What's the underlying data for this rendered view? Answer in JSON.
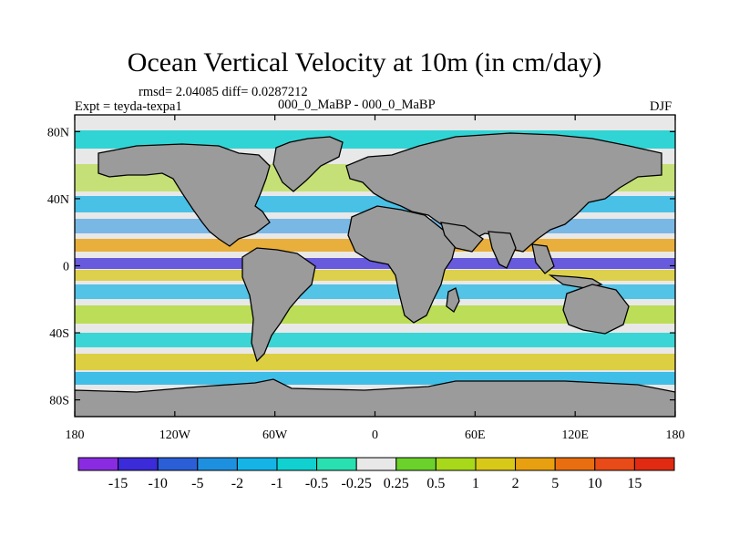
{
  "chart_data": {
    "type": "heatmap",
    "title": "Ocean Vertical Velocity at 10m (in cm/day)",
    "stats": "rmsd= 2.04085 diff= 0.0287212",
    "experiment": "Expt = teyda-texpa1",
    "comparison": "000_0_MaBP - 000_0_MaBP",
    "season": "DJF",
    "x_ticks": [
      "180",
      "120W",
      "60W",
      "0",
      "60E",
      "120E",
      "180"
    ],
    "x_tick_lon": [
      -180,
      -120,
      -60,
      0,
      60,
      120,
      180
    ],
    "y_ticks": [
      "80N",
      "40N",
      "0",
      "40S",
      "80S"
    ],
    "y_tick_lat": [
      80,
      40,
      0,
      -40,
      -80
    ],
    "xlim": [
      -180,
      180
    ],
    "ylim": [
      -90,
      90
    ],
    "colorbar_levels": [
      "-15",
      "-10",
      "-5",
      "-2",
      "-1",
      "-0.5",
      "-0.25",
      "0.25",
      "0.5",
      "1",
      "2",
      "5",
      "10",
      "15"
    ],
    "colorbar_colors": [
      "#8a2be2",
      "#3c2bd8",
      "#2a5fd8",
      "#1e90e0",
      "#14b4e6",
      "#10d0d0",
      "#28e0b0",
      "#e8e8e8",
      "#6ad22a",
      "#a8d81a",
      "#d8c818",
      "#e8a010",
      "#e86e10",
      "#e84a18",
      "#e02a12"
    ],
    "land_color": "#9b9b9b"
  }
}
